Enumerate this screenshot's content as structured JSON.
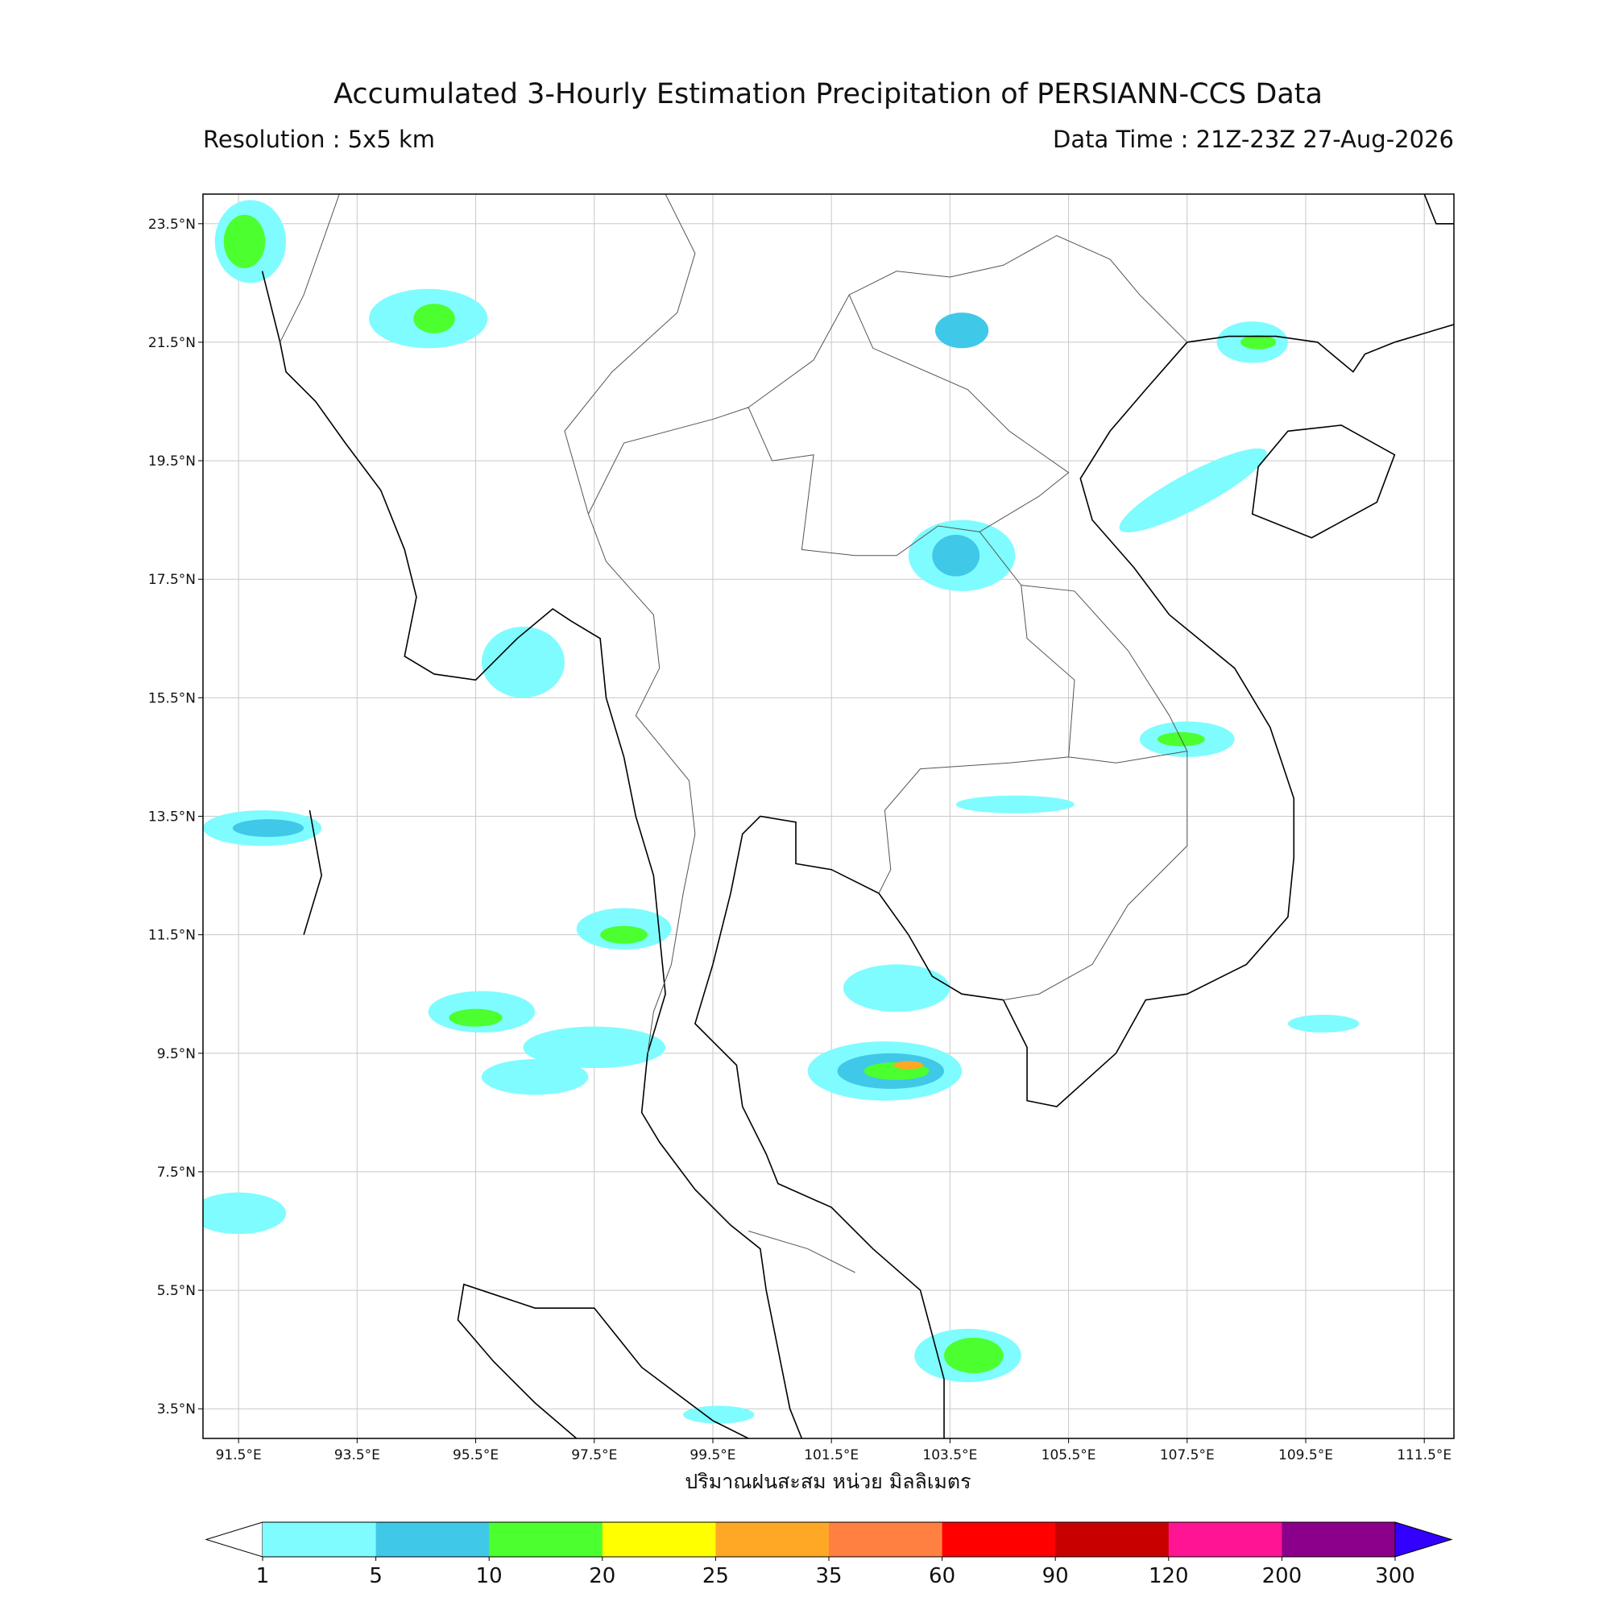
{
  "title": "Accumulated 3-Hourly Estimation Precipitation of PERSIANN-CCS Data",
  "subtitle_left": "Resolution : 5x5 km",
  "subtitle_right": "Data Time : 21Z-23Z 27-Aug-2026",
  "map": {
    "xlim": [
      90.9,
      112.0
    ],
    "ylim": [
      3.0,
      24.0
    ],
    "grid": true,
    "xticks": [
      {
        "value": 91.5,
        "label": "91.5°E"
      },
      {
        "value": 93.5,
        "label": "93.5°E"
      },
      {
        "value": 95.5,
        "label": "95.5°E"
      },
      {
        "value": 97.5,
        "label": "97.5°E"
      },
      {
        "value": 99.5,
        "label": "99.5°E"
      },
      {
        "value": 101.5,
        "label": "101.5°E"
      },
      {
        "value": 103.5,
        "label": "103.5°E"
      },
      {
        "value": 105.5,
        "label": "105.5°E"
      },
      {
        "value": 107.5,
        "label": "107.5°E"
      },
      {
        "value": 109.5,
        "label": "109.5°E"
      },
      {
        "value": 111.5,
        "label": "111.5°E"
      }
    ],
    "yticks": [
      {
        "value": 3.5,
        "label": "3.5°N"
      },
      {
        "value": 5.5,
        "label": "5.5°N"
      },
      {
        "value": 7.5,
        "label": "7.5°N"
      },
      {
        "value": 9.5,
        "label": "9.5°N"
      },
      {
        "value": 11.5,
        "label": "11.5°N"
      },
      {
        "value": 13.5,
        "label": "13.5°N"
      },
      {
        "value": 15.5,
        "label": "15.5°N"
      },
      {
        "value": 17.5,
        "label": "17.5°N"
      },
      {
        "value": 19.5,
        "label": "19.5°N"
      },
      {
        "value": 21.5,
        "label": "21.5°N"
      },
      {
        "value": 23.5,
        "label": "23.5°N"
      }
    ]
  },
  "xlabel": "ปริมาณฝนสะสม หน่วย มิลลิเมตร",
  "colorbar": {
    "levels": [
      1,
      5,
      10,
      20,
      25,
      35,
      60,
      90,
      120,
      200,
      300
    ],
    "colors": [
      "#7ffcff",
      "#40c8e8",
      "#4cff2f",
      "#ffff00",
      "#ffa826",
      "#ff8040",
      "#ff0000",
      "#c80000",
      "#ff1493",
      "#8b008b"
    ],
    "under_color": "#ffffff",
    "over_color": "#3300ff"
  }
}
